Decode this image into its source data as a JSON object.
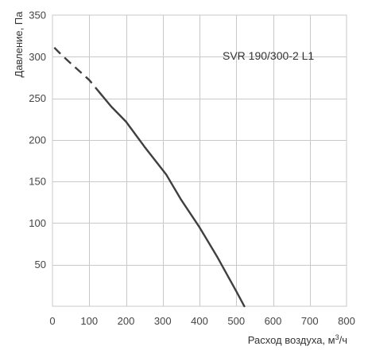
{
  "chart_data": {
    "type": "line",
    "xlabel_prefix": "Расход воздуха, м",
    "xlabel_sup": "3",
    "xlabel_suffix": "/ч",
    "ylabel": "Давление, Па",
    "xlim": [
      0,
      800
    ],
    "ylim": [
      0,
      350
    ],
    "x_ticks": [
      0,
      100,
      200,
      300,
      400,
      500,
      600,
      700,
      800
    ],
    "y_ticks": [
      50,
      100,
      150,
      200,
      250,
      300,
      350
    ],
    "grid": true,
    "legend": "none",
    "annotation": "SVR 190/300-2 L1",
    "line_color": "#3f3f3f",
    "grid_color": "#c9c9c9",
    "series": [
      {
        "style": "dashed",
        "x": [
          5,
          25,
          50,
          75,
          100,
          130
        ],
        "y": [
          311,
          302,
          292,
          282,
          272,
          256
        ]
      },
      {
        "style": "solid",
        "x": [
          130,
          160,
          200,
          250,
          310,
          350,
          400,
          450,
          500,
          522
        ],
        "y": [
          256,
          240,
          222,
          192,
          158,
          128,
          95,
          58,
          18,
          0
        ]
      }
    ]
  }
}
